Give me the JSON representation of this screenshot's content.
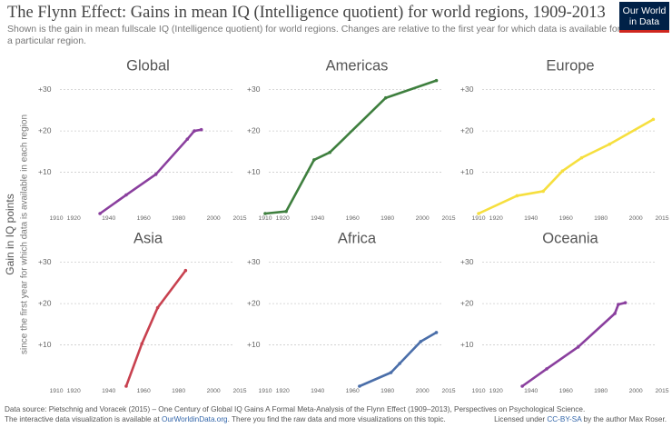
{
  "header": {
    "title": "The Flynn Effect: Gains in mean IQ (Intelligence quotient) for world regions, 1909-2013",
    "subtitle": [
      "Shown is the gain in mean fullscale IQ (Intelligence quotient) for world regions. Changes are relative to the first year for which data is available for",
      "a particular region."
    ],
    "logo": [
      "Our World",
      "in Data"
    ]
  },
  "y_label": "Gain in IQ points",
  "y_sublabel": "since the first year for which data is available in each region",
  "chart_data": [
    {
      "type": "line",
      "title": "Global",
      "color": "#8a3f9e",
      "x": [
        1935,
        1950,
        1967,
        1985,
        1989,
        1993
      ],
      "values": [
        0,
        4.5,
        9.5,
        18,
        20,
        20.3
      ],
      "xlim": [
        1910,
        2015
      ],
      "xticks": [
        1910,
        1920,
        1940,
        1960,
        1980,
        2000,
        2015
      ],
      "ylim": [
        0,
        33
      ],
      "yticks": [
        {
          "value": 10,
          "label": "+10"
        },
        {
          "value": 20,
          "label": "+20"
        },
        {
          "value": 30,
          "label": "+30"
        }
      ],
      "grid": true
    },
    {
      "type": "line",
      "title": "Americas",
      "color": "#3e7f3e",
      "x": [
        1910,
        1922,
        1938,
        1947,
        1979,
        2008
      ],
      "values": [
        0,
        0.5,
        13,
        14.8,
        28,
        32.2
      ],
      "xlim": [
        1910,
        2015
      ],
      "xticks": [
        1910,
        1920,
        1940,
        1960,
        1980,
        2000,
        2015
      ],
      "ylim": [
        0,
        33
      ],
      "yticks": [
        {
          "value": 10,
          "label": "+10"
        },
        {
          "value": 20,
          "label": "+20"
        },
        {
          "value": 30,
          "label": "+30"
        }
      ],
      "grid": true
    },
    {
      "type": "line",
      "title": "Europe",
      "color": "#f6df3e",
      "x": [
        1910,
        1932,
        1947,
        1958,
        1969,
        1985,
        2010
      ],
      "values": [
        0,
        4.3,
        5.4,
        10.3,
        13.5,
        16.8,
        22.8
      ],
      "xlim": [
        1910,
        2015
      ],
      "xticks": [
        1910,
        1920,
        1940,
        1960,
        1980,
        2000,
        2015
      ],
      "ylim": [
        0,
        33
      ],
      "yticks": [
        {
          "value": 10,
          "label": "+10"
        },
        {
          "value": 20,
          "label": "+20"
        },
        {
          "value": 30,
          "label": "+30"
        }
      ],
      "grid": true
    },
    {
      "type": "line",
      "title": "Asia",
      "color": "#c8414f",
      "x": [
        1950,
        1959,
        1968,
        1984
      ],
      "values": [
        0,
        10.3,
        19,
        28
      ],
      "xlim": [
        1910,
        2015
      ],
      "xticks": [
        1910,
        1920,
        1940,
        1960,
        1980,
        2000,
        2015
      ],
      "ylim": [
        0,
        33
      ],
      "yticks": [
        {
          "value": 10,
          "label": "+10"
        },
        {
          "value": 20,
          "label": "+20"
        },
        {
          "value": 30,
          "label": "+30"
        }
      ],
      "grid": true
    },
    {
      "type": "line",
      "title": "Africa",
      "color": "#4a6ea9",
      "x": [
        1964,
        1982,
        1987,
        1999,
        2008
      ],
      "values": [
        0,
        3.3,
        5.5,
        10.8,
        13
      ],
      "xlim": [
        1910,
        2015
      ],
      "xticks": [
        1910,
        1920,
        1940,
        1960,
        1980,
        2000,
        2015
      ],
      "ylim": [
        0,
        33
      ],
      "yticks": [
        {
          "value": 10,
          "label": "+10"
        },
        {
          "value": 20,
          "label": "+20"
        },
        {
          "value": 30,
          "label": "+30"
        }
      ],
      "grid": true
    },
    {
      "type": "line",
      "title": "Oceania",
      "color": "#8a3f9e",
      "x": [
        1935,
        1949,
        1967,
        1988,
        1990,
        1994
      ],
      "values": [
        0,
        4.2,
        9.5,
        17.6,
        19.8,
        20.2
      ],
      "xlim": [
        1910,
        2015
      ],
      "xticks": [
        1910,
        1920,
        1940,
        1960,
        1980,
        2000,
        2015
      ],
      "ylim": [
        0,
        33
      ],
      "yticks": [
        {
          "value": 10,
          "label": "+10"
        },
        {
          "value": 20,
          "label": "+20"
        },
        {
          "value": 30,
          "label": "+30"
        }
      ],
      "grid": true
    }
  ],
  "footer": {
    "source": "Data source: Pietschnig and Voracek (2015) – One Century of Global IQ Gains A Formal Meta-Analysis of the Flynn Effect (1909–2013), Perspectives on Psychological Science.",
    "note": [
      "The interactive data visualization is available at ",
      "OurWorldinData.org",
      ". There you find the raw data and more visualizations on this topic."
    ],
    "license": [
      "Licensed under ",
      "CC-BY-SA",
      " by the author Max Roser."
    ]
  }
}
